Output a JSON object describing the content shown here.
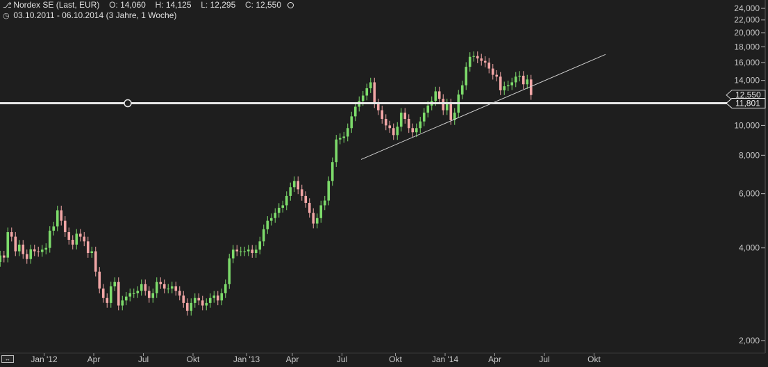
{
  "header": {
    "name": "Nordex SE (Last, EUR)",
    "o_label": "O:",
    "o_value": "14,060",
    "h_label": "H:",
    "h_value": "14,125",
    "l_label": "L:",
    "l_value": "12,295",
    "c_label": "C:",
    "c_value": "12,550",
    "range": "03.10.2011 - 06.10.2014 (3 Jahre, 1 Woche)",
    "chart_icon": "candlestick-icon",
    "clock_icon": "clock-icon",
    "toggle_icon": "circle-toggle-icon"
  },
  "colors": {
    "up": "#7ddb6b",
    "down": "#f2a6a6",
    "background": "#1e1e1e",
    "line": "#d0d0d0"
  },
  "chart_data": {
    "type": "candlestick",
    "title": "Nordex SE (Last, EUR)",
    "date_range": [
      "2011-10-03",
      "2014-10-06"
    ],
    "y_scale": "log",
    "ylim": [
      1900,
      26000
    ],
    "y_ticks": [
      2000,
      4000,
      6000,
      8000,
      10000,
      12000,
      14000,
      16000,
      18000,
      20000,
      22000,
      24000
    ],
    "y_tick_labels": [
      "2,000",
      "4,000",
      "6,000",
      "8,000",
      "10,000",
      "12,000",
      "14,000",
      "16,000",
      "18,000",
      "20,000",
      "22,000",
      "24,000"
    ],
    "x_ticks": [
      "2012-01-02",
      "2012-04-02",
      "2012-07-02",
      "2012-10-01",
      "2013-01-07",
      "2013-04-01",
      "2013-07-01",
      "2013-10-07",
      "2014-01-06",
      "2014-04-07",
      "2014-07-07",
      "2014-10-06"
    ],
    "x_tick_labels": [
      "Jan '12",
      "Apr",
      "Jul",
      "Okt",
      "Jan '13",
      "Apr",
      "Jul",
      "Okt",
      "Jan '14",
      "Apr",
      "Jul",
      "Okt"
    ],
    "last_close": 12550,
    "last_close_label": "12,550",
    "horizontal_line": {
      "value": 11801,
      "label": "11,801"
    },
    "trend_line": {
      "from": {
        "date": "2013-08-05",
        "value": 7750
      },
      "to": {
        "date": "2014-10-27",
        "value": 17000
      }
    },
    "weekly_close": [
      3600,
      3780,
      3720,
      4500,
      4350,
      3900,
      4100,
      3820,
      3680,
      3960,
      3900,
      3880,
      3950,
      4000,
      4550,
      4700,
      5300,
      4900,
      4500,
      4250,
      4100,
      4450,
      4350,
      4200,
      3850,
      3900,
      3350,
      2950,
      2750,
      2650,
      3000,
      3100,
      2600,
      2700,
      2780,
      2850,
      2850,
      2900,
      3050,
      2900,
      2750,
      2850,
      3100,
      3050,
      2950,
      2950,
      3000,
      2900,
      2800,
      2650,
      2500,
      2650,
      2750,
      2700,
      2600,
      2650,
      2750,
      2800,
      2700,
      2850,
      3050,
      3700,
      3950,
      3900,
      3900,
      3900,
      3950,
      3850,
      3950,
      4200,
      4600,
      4900,
      5000,
      5200,
      5400,
      5500,
      5900,
      6300,
      6600,
      6200,
      5900,
      5600,
      5200,
      4800,
      5000,
      5500,
      5700,
      6600,
      7600,
      9000,
      9100,
      9200,
      9800,
      10700,
      11500,
      12000,
      12500,
      13200,
      13800,
      11800,
      11200,
      10500,
      10000,
      9800,
      9300,
      9900,
      11000,
      10500,
      9800,
      9500,
      9800,
      10300,
      11000,
      11600,
      12000,
      12900,
      12200,
      11200,
      11800,
      10400,
      11000,
      12600,
      13500,
      15500,
      16700,
      16800,
      16500,
      16200,
      16000,
      15300,
      14600,
      14400,
      13000,
      13400,
      13500,
      13800,
      14400,
      14500,
      13600,
      14100,
      12550
    ]
  }
}
